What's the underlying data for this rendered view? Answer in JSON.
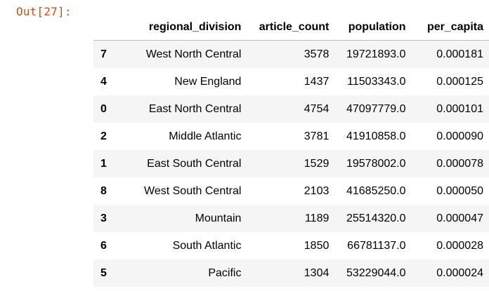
{
  "cell": {
    "prompt": "Out[27]:"
  },
  "table": {
    "columns": [
      "regional_division",
      "article_count",
      "population",
      "per_capita"
    ],
    "rows": [
      {
        "index": "7",
        "regional_division": "West North Central",
        "article_count": "3578",
        "population": "19721893.0",
        "per_capita": "0.000181"
      },
      {
        "index": "4",
        "regional_division": "New England",
        "article_count": "1437",
        "population": "11503343.0",
        "per_capita": "0.000125"
      },
      {
        "index": "0",
        "regional_division": "East North Central",
        "article_count": "4754",
        "population": "47097779.0",
        "per_capita": "0.000101"
      },
      {
        "index": "2",
        "regional_division": "Middle Atlantic",
        "article_count": "3781",
        "population": "41910858.0",
        "per_capita": "0.000090"
      },
      {
        "index": "1",
        "regional_division": "East South Central",
        "article_count": "1529",
        "population": "19578002.0",
        "per_capita": "0.000078"
      },
      {
        "index": "8",
        "regional_division": "West South Central",
        "article_count": "2103",
        "population": "41685250.0",
        "per_capita": "0.000050"
      },
      {
        "index": "3",
        "regional_division": "Mountain",
        "article_count": "1189",
        "population": "25514320.0",
        "per_capita": "0.000047"
      },
      {
        "index": "6",
        "regional_division": "South Atlantic",
        "article_count": "1850",
        "population": "66781137.0",
        "per_capita": "0.000028"
      },
      {
        "index": "5",
        "regional_division": "Pacific",
        "article_count": "1304",
        "population": "53229044.0",
        "per_capita": "0.000024"
      }
    ]
  },
  "colors": {
    "prompt": "#c8501e",
    "row_stripe": "#f5f5f5",
    "header_rule": "#bdbdbd"
  }
}
